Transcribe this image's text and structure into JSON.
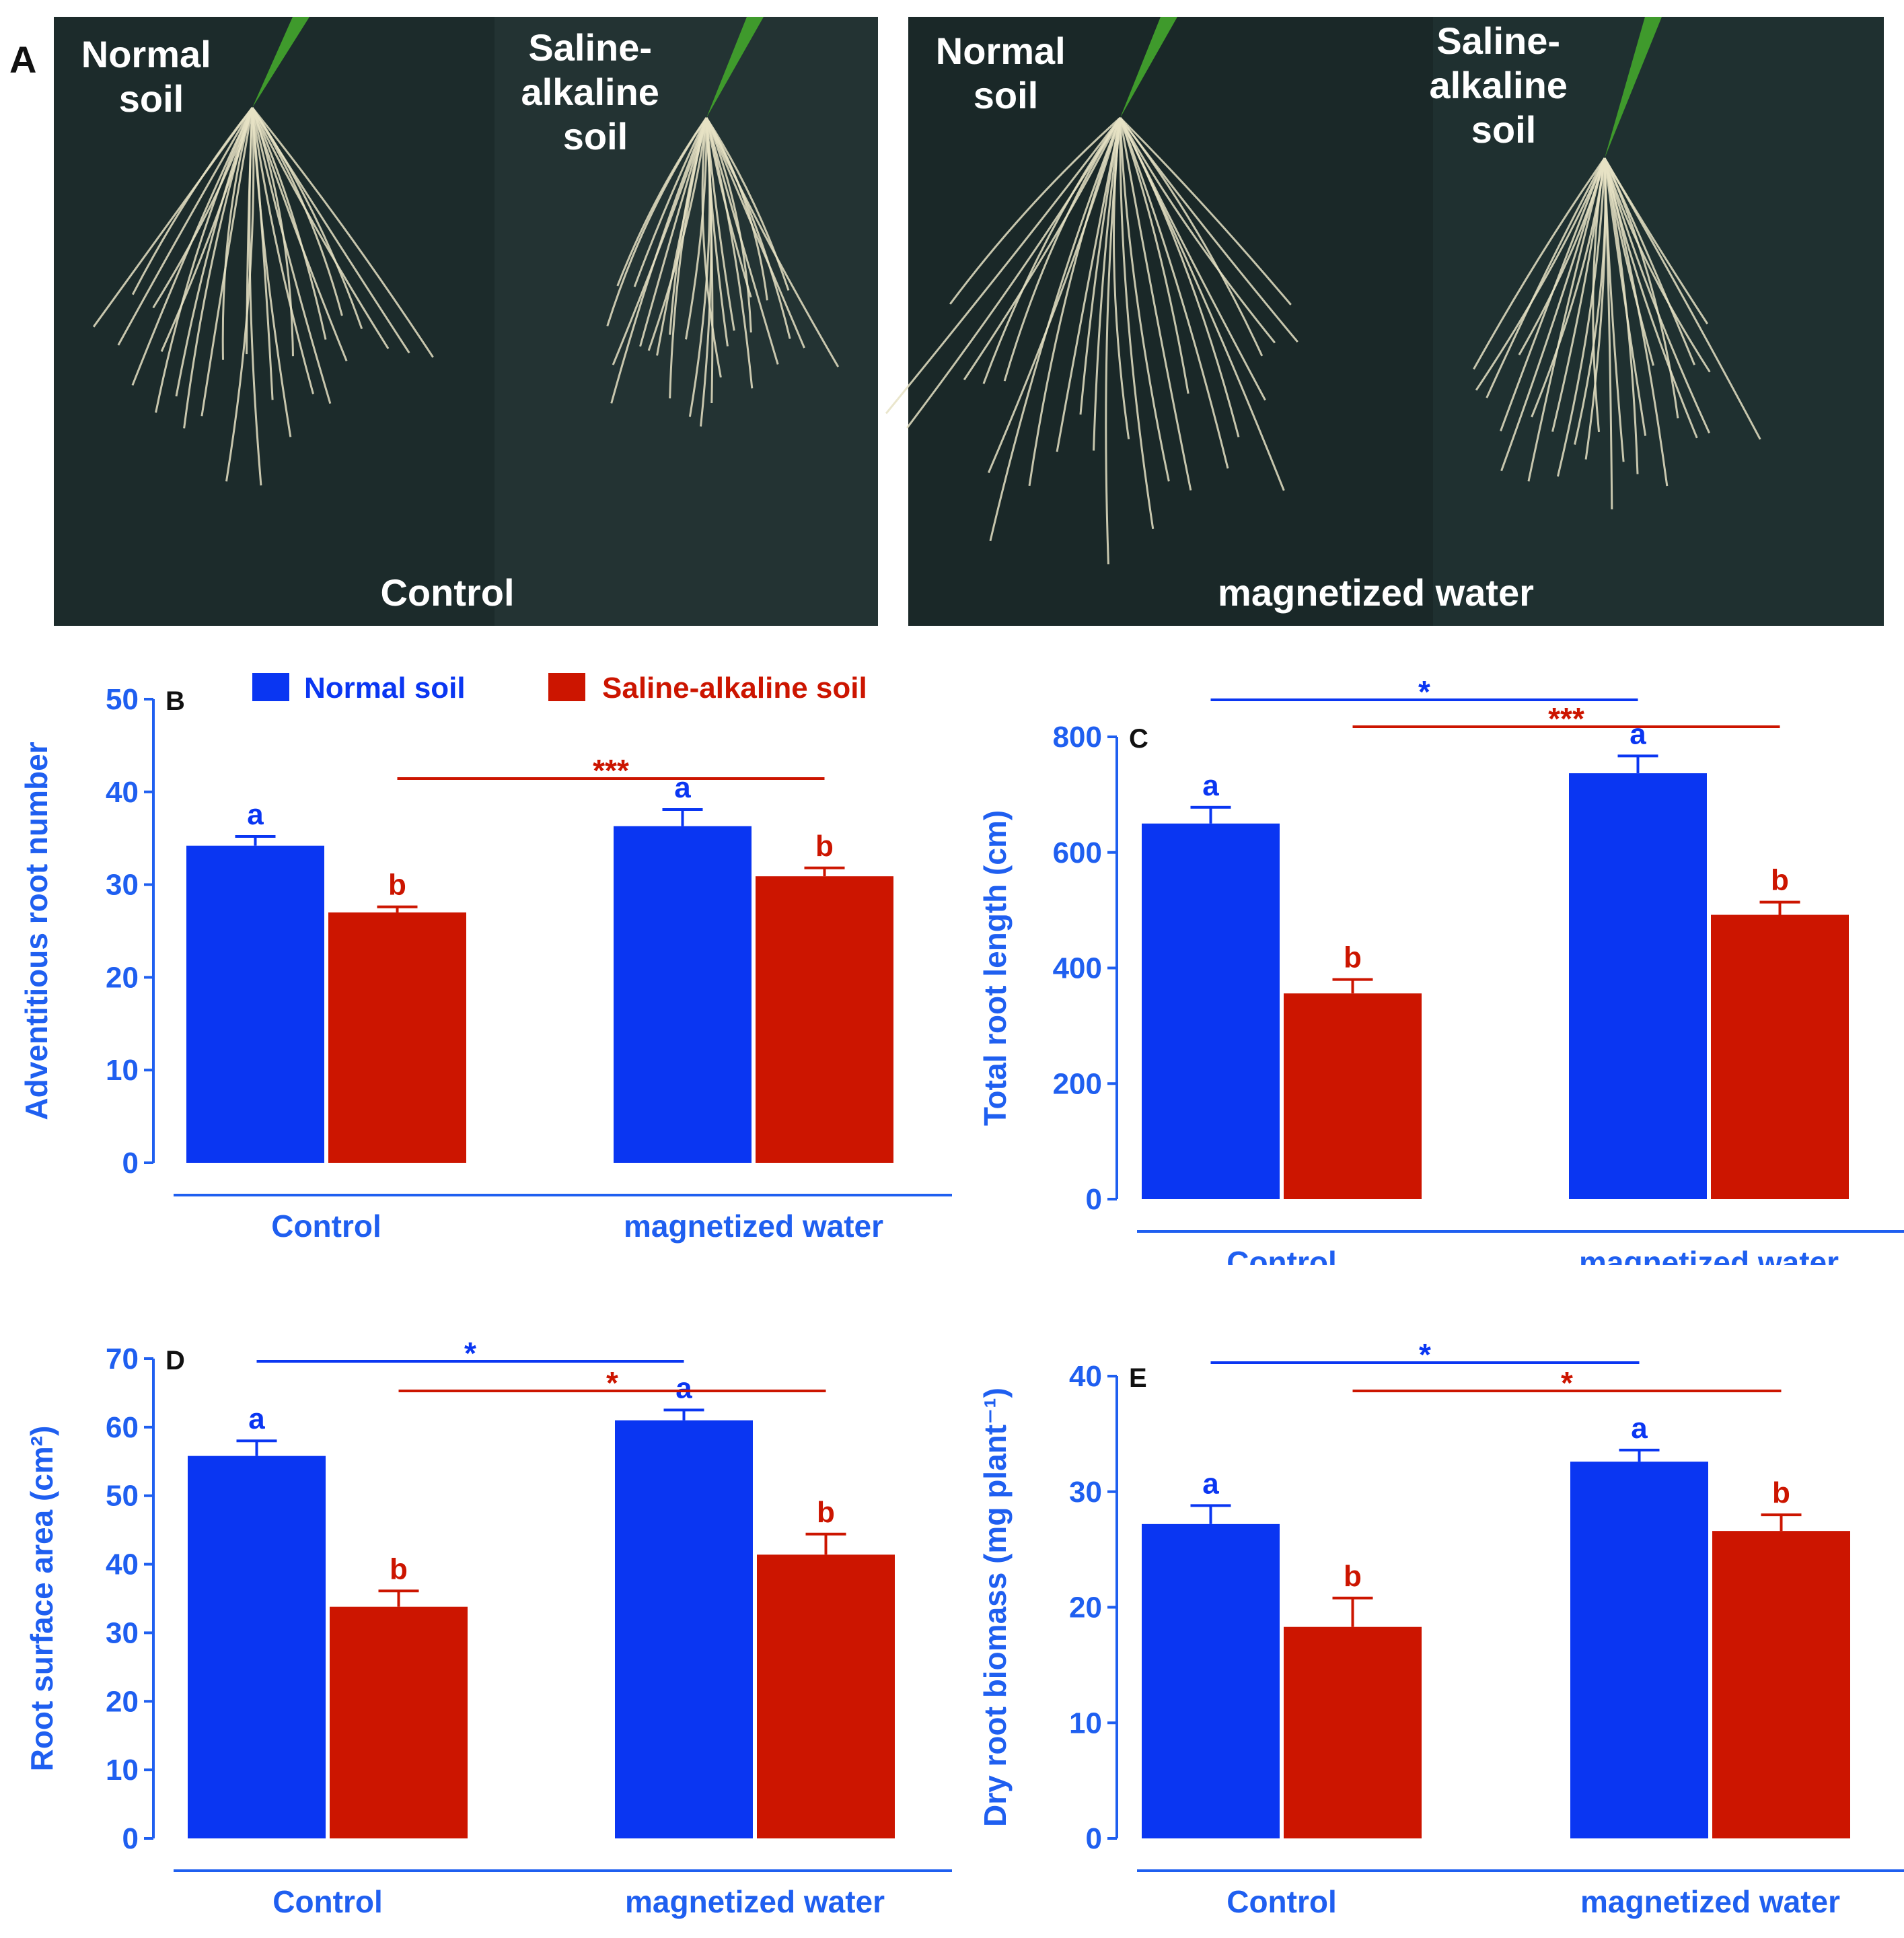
{
  "colors": {
    "normal": "#0a36f2",
    "saline": "#cc1500",
    "axis": "#1f5ff0",
    "photo_bg": "#1c2b2b",
    "root": "#e6e2c4",
    "leaf": "#3f9a2c"
  },
  "photo": {
    "panel_label": "A",
    "left": {
      "normal_label": [
        "Normal",
        "soil"
      ],
      "saline_label": [
        "Saline-",
        "alkaline",
        "soil"
      ],
      "caption": "Control"
    },
    "right": {
      "normal_label": [
        "Normal",
        "soil"
      ],
      "saline_label": [
        "Saline-",
        "alkaline",
        "soil"
      ],
      "caption": "magnetized water"
    }
  },
  "legend": {
    "normal": "Normal soil",
    "saline": "Saline-alkaline soil"
  },
  "chart_data": [
    {
      "panel": "B",
      "type": "bar",
      "ylabel": "Adventitious root number",
      "ylim": [
        0,
        50
      ],
      "yticks": [
        "0",
        "10",
        "20",
        "30",
        "40",
        "50"
      ],
      "categories": [
        "Control",
        "magnetized water"
      ],
      "series": [
        {
          "name": "Normal soil",
          "values": [
            34.2,
            36.3
          ],
          "errors": [
            1.0,
            1.8
          ],
          "letters": [
            "a",
            "a"
          ]
        },
        {
          "name": "Saline-alkaline soil",
          "values": [
            27.0,
            30.9
          ],
          "errors": [
            0.6,
            0.9
          ],
          "letters": [
            "b",
            "b"
          ]
        }
      ],
      "significance": [
        {
          "series": "Saline-alkaline soil",
          "label": "***"
        }
      ]
    },
    {
      "panel": "C",
      "type": "bar",
      "ylabel": "Total root length (cm)",
      "ylim": [
        0,
        800
      ],
      "yticks": [
        "0",
        "200",
        "400",
        "600",
        "800"
      ],
      "categories": [
        "Control",
        "magnetized water"
      ],
      "series": [
        {
          "name": "Normal soil",
          "values": [
            650,
            737
          ],
          "errors": [
            28,
            30
          ],
          "letters": [
            "a",
            "a"
          ]
        },
        {
          "name": "Saline-alkaline soil",
          "values": [
            356,
            492
          ],
          "errors": [
            24,
            22
          ],
          "letters": [
            "b",
            "b"
          ]
        }
      ],
      "significance": [
        {
          "series": "Normal soil",
          "label": "*"
        },
        {
          "series": "Saline-alkaline soil",
          "label": "***"
        }
      ]
    },
    {
      "panel": "D",
      "type": "bar",
      "ylabel": "Root surface area (cm²)",
      "ylim": [
        0,
        70
      ],
      "yticks": [
        "0",
        "10",
        "20",
        "30",
        "40",
        "50",
        "60",
        "70"
      ],
      "categories": [
        "Control",
        "magnetized water"
      ],
      "series": [
        {
          "name": "Normal soil",
          "values": [
            55.8,
            61.0
          ],
          "errors": [
            2.2,
            1.5
          ],
          "letters": [
            "a",
            "a"
          ]
        },
        {
          "name": "Saline-alkaline soil",
          "values": [
            33.8,
            41.4
          ],
          "errors": [
            2.3,
            3.0
          ],
          "letters": [
            "b",
            "b"
          ]
        }
      ],
      "significance": [
        {
          "series": "Normal soil",
          "label": "*"
        },
        {
          "series": "Saline-alkaline soil",
          "label": "*"
        }
      ]
    },
    {
      "panel": "E",
      "type": "bar",
      "ylabel": "Dry root biomass (mg plant⁻¹)",
      "ylim": [
        0,
        40
      ],
      "yticks": [
        "0",
        "10",
        "20",
        "30",
        "40"
      ],
      "categories": [
        "Control",
        "magnetized water"
      ],
      "series": [
        {
          "name": "Normal soil",
          "values": [
            27.2,
            32.6
          ],
          "errors": [
            1.6,
            1.0
          ],
          "letters": [
            "a",
            "a"
          ]
        },
        {
          "name": "Saline-alkaline soil",
          "values": [
            18.3,
            26.6
          ],
          "errors": [
            2.5,
            1.4
          ],
          "letters": [
            "b",
            "b"
          ]
        }
      ],
      "significance": [
        {
          "series": "Normal soil",
          "label": "*"
        },
        {
          "series": "Saline-alkaline soil",
          "label": "*"
        }
      ]
    }
  ]
}
